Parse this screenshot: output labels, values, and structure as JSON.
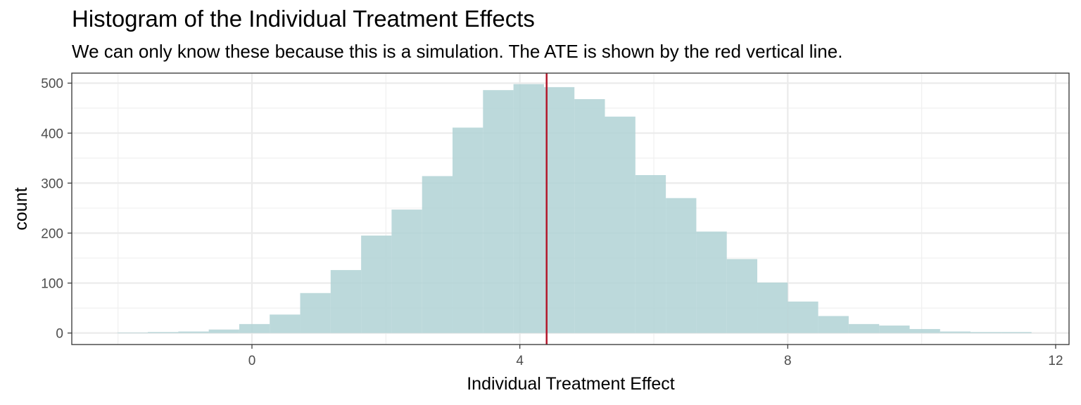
{
  "chart_data": {
    "type": "bar",
    "title": "Histogram of the Individual Treatment Effects",
    "subtitle": "We can only know these because this is a simulation.  The ATE is shown by the red vertical line.",
    "xlabel": "Individual Treatment Effect",
    "ylabel": "count",
    "xlim": [
      -2.69,
      12.2
    ],
    "ylim": [
      -23,
      520
    ],
    "x_ticks": [
      0,
      4,
      8,
      12
    ],
    "y_ticks": [
      0,
      100,
      200,
      300,
      400,
      500
    ],
    "bin_width": 0.455,
    "bin_starts": [
      -2.01,
      -1.555,
      -1.1,
      -0.645,
      -0.19,
      0.265,
      0.72,
      1.175,
      1.63,
      2.085,
      2.54,
      2.995,
      3.45,
      3.905,
      4.36,
      4.815,
      5.27,
      5.725,
      6.18,
      6.635,
      7.09,
      7.545,
      8.0,
      8.455,
      8.91,
      9.365,
      9.82,
      10.275,
      10.73,
      11.185
    ],
    "values": [
      1,
      2,
      3,
      7,
      18,
      37,
      80,
      126,
      195,
      247,
      314,
      411,
      486,
      498,
      492,
      468,
      433,
      316,
      270,
      203,
      148,
      101,
      63,
      34,
      18,
      15,
      8,
      3,
      2,
      2
    ],
    "reference_line": {
      "x": 4.4,
      "color": "#b2182b",
      "label": "ATE"
    },
    "bar_color": "#b0d2d5",
    "grid": true,
    "theme": "bw"
  }
}
